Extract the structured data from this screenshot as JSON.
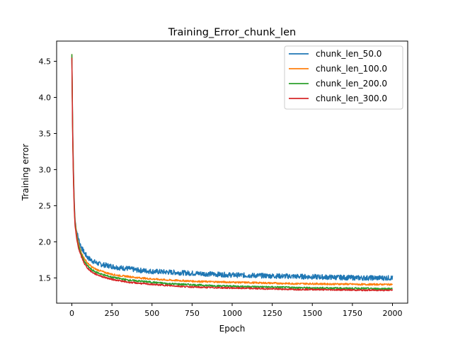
{
  "chart_data": {
    "type": "line",
    "title": "Training_Error_chunk_len",
    "xlabel": "Epoch",
    "ylabel": "Training error",
    "xlim": [
      -95,
      2095
    ],
    "ylim": [
      1.15,
      4.78
    ],
    "xticks": [
      0,
      250,
      500,
      750,
      1000,
      1250,
      1500,
      1750,
      2000
    ],
    "xtick_labels": [
      "0",
      "250",
      "500",
      "750",
      "1000",
      "1250",
      "1500",
      "1750",
      "2000"
    ],
    "yticks": [
      1.5,
      2.0,
      2.5,
      3.0,
      3.5,
      4.0,
      4.5
    ],
    "ytick_labels": [
      "1.5",
      "2.0",
      "2.5",
      "3.0",
      "3.5",
      "4.0",
      "4.5"
    ],
    "grid": false,
    "legend_position": "top-right",
    "series": [
      {
        "name": "chunk_len_50.0",
        "color": "#1f77b4",
        "x": [
          0,
          5,
          10,
          15,
          20,
          30,
          40,
          50,
          60,
          70,
          80,
          90,
          100,
          125,
          150,
          175,
          200,
          250,
          300,
          350,
          400,
          500,
          600,
          700,
          800,
          900,
          1000,
          1100,
          1200,
          1300,
          1400,
          1500,
          1600,
          1700,
          1800,
          1900,
          2000
        ],
        "y": [
          4.58,
          3.6,
          3.0,
          2.55,
          2.3,
          2.15,
          2.05,
          1.98,
          1.92,
          1.88,
          1.84,
          1.81,
          1.78,
          1.74,
          1.71,
          1.69,
          1.68,
          1.66,
          1.64,
          1.63,
          1.61,
          1.59,
          1.58,
          1.57,
          1.56,
          1.55,
          1.54,
          1.535,
          1.53,
          1.525,
          1.52,
          1.515,
          1.51,
          1.505,
          1.5,
          1.5,
          1.5
        ]
      },
      {
        "name": "chunk_len_100.0",
        "color": "#ff7f0e",
        "x": [
          0,
          5,
          10,
          15,
          20,
          30,
          40,
          50,
          60,
          70,
          80,
          90,
          100,
          125,
          150,
          175,
          200,
          250,
          300,
          350,
          400,
          500,
          600,
          700,
          800,
          900,
          1000,
          1100,
          1200,
          1300,
          1400,
          1500,
          1600,
          1700,
          1800,
          1900,
          2000
        ],
        "y": [
          4.6,
          3.55,
          2.95,
          2.5,
          2.28,
          2.1,
          1.99,
          1.91,
          1.85,
          1.8,
          1.76,
          1.73,
          1.7,
          1.65,
          1.62,
          1.6,
          1.58,
          1.55,
          1.53,
          1.52,
          1.505,
          1.485,
          1.47,
          1.46,
          1.45,
          1.445,
          1.44,
          1.435,
          1.43,
          1.425,
          1.42,
          1.42,
          1.415,
          1.415,
          1.41,
          1.41,
          1.41
        ]
      },
      {
        "name": "chunk_len_200.0",
        "color": "#2ca02c",
        "x": [
          0,
          5,
          10,
          15,
          20,
          30,
          40,
          50,
          60,
          70,
          80,
          90,
          100,
          125,
          150,
          175,
          200,
          250,
          300,
          350,
          400,
          500,
          600,
          700,
          800,
          900,
          1000,
          1100,
          1200,
          1300,
          1400,
          1500,
          1600,
          1700,
          1800,
          1900,
          2000
        ],
        "y": [
          4.6,
          3.5,
          2.9,
          2.48,
          2.25,
          2.07,
          1.96,
          1.88,
          1.82,
          1.77,
          1.72,
          1.69,
          1.66,
          1.61,
          1.58,
          1.56,
          1.54,
          1.51,
          1.49,
          1.47,
          1.46,
          1.44,
          1.42,
          1.41,
          1.4,
          1.39,
          1.385,
          1.38,
          1.375,
          1.37,
          1.365,
          1.36,
          1.36,
          1.355,
          1.355,
          1.35,
          1.35
        ]
      },
      {
        "name": "chunk_len_300.0",
        "color": "#d62728",
        "x": [
          0,
          5,
          10,
          15,
          20,
          30,
          40,
          50,
          60,
          70,
          80,
          90,
          100,
          125,
          150,
          175,
          200,
          250,
          300,
          350,
          400,
          500,
          600,
          700,
          800,
          900,
          1000,
          1100,
          1200,
          1300,
          1400,
          1500,
          1600,
          1700,
          1800,
          1900,
          2000
        ],
        "y": [
          4.55,
          3.45,
          2.85,
          2.45,
          2.22,
          2.04,
          1.93,
          1.85,
          1.79,
          1.74,
          1.69,
          1.66,
          1.63,
          1.58,
          1.55,
          1.53,
          1.51,
          1.48,
          1.46,
          1.44,
          1.43,
          1.41,
          1.395,
          1.38,
          1.37,
          1.365,
          1.36,
          1.355,
          1.35,
          1.345,
          1.34,
          1.34,
          1.335,
          1.335,
          1.33,
          1.33,
          1.33
        ]
      }
    ]
  }
}
